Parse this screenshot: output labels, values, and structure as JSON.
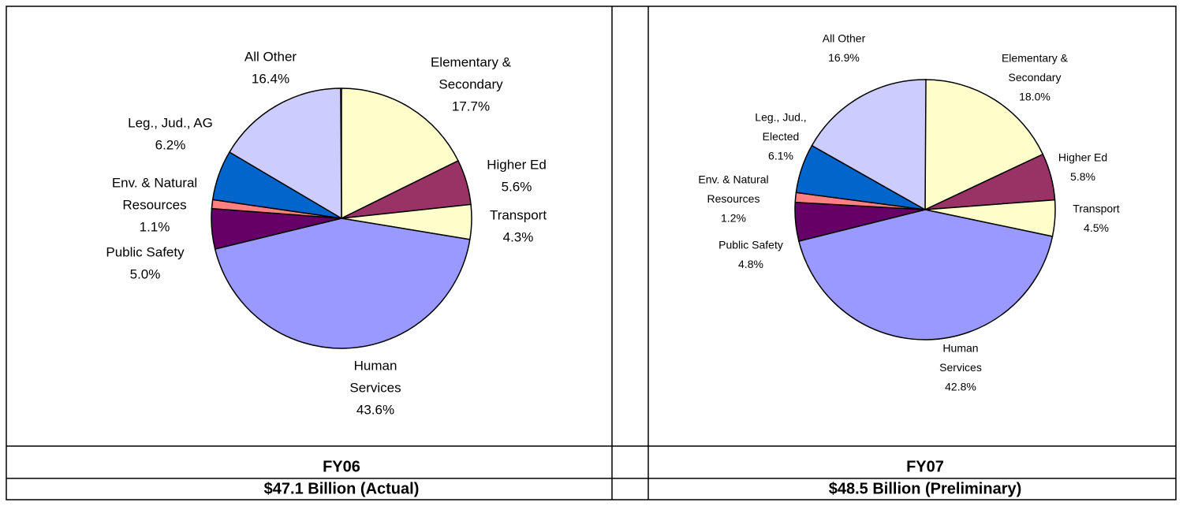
{
  "chart_data": [
    {
      "type": "pie",
      "title": "FY06",
      "subtitle": "$47.1 Billion (Actual)",
      "categories": [
        [
          "Elementary &",
          "Secondary"
        ],
        [
          "Higher Ed"
        ],
        [
          "Transport"
        ],
        [
          "Human",
          "Services"
        ],
        [
          "Public Safety"
        ],
        [
          "Env. & Natural",
          "Resources"
        ],
        [
          "Leg., Jud., AG"
        ],
        [
          "All Other"
        ]
      ],
      "values": [
        17.7,
        5.6,
        4.3,
        43.6,
        5.0,
        1.1,
        6.2,
        16.4
      ],
      "value_labels": [
        "17.7%",
        "5.6%",
        "4.3%",
        "43.6%",
        "5.0%",
        "1.1%",
        "6.2%",
        "16.4%"
      ],
      "colors": [
        "#ffffcc",
        "#993366",
        "#ffffcc",
        "#9999ff",
        "#660066",
        "#ff8080",
        "#0066cc",
        "#ccccff"
      ]
    },
    {
      "type": "pie",
      "title": "FY07",
      "subtitle": "$48.5 Billion (Preliminary)",
      "categories": [
        [
          "Elementary &",
          "Secondary"
        ],
        [
          "Higher Ed"
        ],
        [
          "Transport"
        ],
        [
          "Human",
          "Services"
        ],
        [
          "Public Safety"
        ],
        [
          "Env. & Natural",
          "Resources"
        ],
        [
          "Leg., Jud.,",
          "Elected"
        ],
        [
          "All Other"
        ]
      ],
      "values": [
        18.0,
        5.8,
        4.5,
        42.8,
        4.8,
        1.2,
        6.1,
        16.9
      ],
      "value_labels": [
        "18.0%",
        "5.8%",
        "4.5%",
        "42.8%",
        "4.8%",
        "1.2%",
        "6.1%",
        "16.9%"
      ],
      "colors": [
        "#ffffcc",
        "#993366",
        "#ffffcc",
        "#9999ff",
        "#660066",
        "#ff8080",
        "#0066cc",
        "#ccccff"
      ]
    }
  ]
}
